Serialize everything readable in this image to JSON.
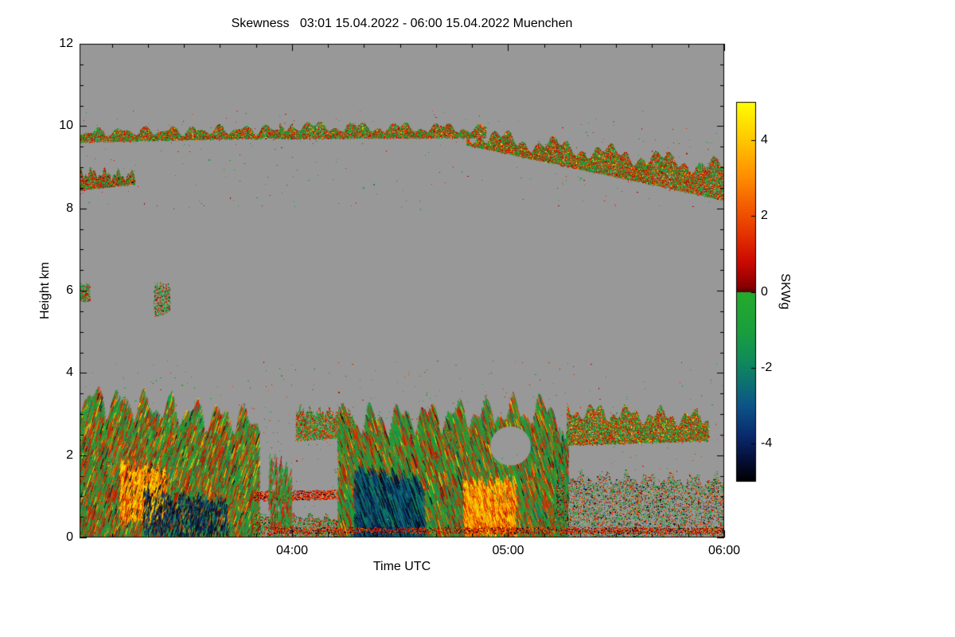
{
  "chart_data": {
    "type": "heatmap",
    "title": "Skewness   03:01 15.04.2022 - 06:00 15.04.2022 Muenchen",
    "xlabel": "Time UTC",
    "ylabel": "Height km",
    "site": "Muenchen",
    "time_start": "03:01 15.04.2022",
    "time_end": "06:00 15.04.2022",
    "x_range_minutes": [
      181,
      360
    ],
    "x_major_ticks": [
      {
        "label": "04:00",
        "minutes": 240
      },
      {
        "label": "05:00",
        "minutes": 300
      },
      {
        "label": "06:00",
        "minutes": 360
      }
    ],
    "x_minor_step_minutes": 10,
    "ylim": [
      0,
      12
    ],
    "y_major_ticks": [
      0,
      2,
      4,
      6,
      8,
      10,
      12
    ],
    "y_minor_step": 0.5,
    "no_data_color": "#989898",
    "frame_color": "#000000",
    "colorbar": {
      "label": "SKWg",
      "range": [
        -5,
        5
      ],
      "ticks": [
        4,
        2,
        0,
        -2,
        -4
      ]
    },
    "colormap_stops": [
      [
        -5.0,
        "#000000"
      ],
      [
        -4.4,
        "#06103a"
      ],
      [
        -3.8,
        "#0a2a6e"
      ],
      [
        -3.0,
        "#0c5488"
      ],
      [
        -2.4,
        "#0c7272"
      ],
      [
        -1.8,
        "#108c5a"
      ],
      [
        -1.0,
        "#1aa03c"
      ],
      [
        -0.02,
        "#25aa2e"
      ],
      [
        0.0,
        "#5c0000"
      ],
      [
        0.15,
        "#8c0000"
      ],
      [
        0.8,
        "#cd0a00"
      ],
      [
        1.5,
        "#e43200"
      ],
      [
        2.2,
        "#f25a00"
      ],
      [
        3.0,
        "#ff8c00"
      ],
      [
        4.0,
        "#ffc800"
      ],
      [
        5.0,
        "#ffff00"
      ]
    ],
    "value_classes": {
      "green": [
        -1.6,
        -0.15
      ],
      "teal": [
        -2.6,
        -1.7
      ],
      "blue": [
        -4.0,
        -2.7
      ],
      "black": [
        -5.0,
        -4.3
      ],
      "darkred": [
        0.05,
        0.4
      ],
      "red": [
        0.45,
        1.8
      ],
      "orange": [
        2.0,
        3.2
      ],
      "yellow": [
        3.6,
        5.0
      ]
    },
    "seed": 20220415,
    "regions": [
      {
        "name": "cirrus-left",
        "style": "speckle",
        "x": [
          0.0,
          0.33
        ],
        "y_bottom": [
          9.62,
          9.72
        ],
        "y_top": [
          10.0,
          10.08
        ],
        "rag": 0.28,
        "samples": 9000,
        "weights": {
          "green": 0.5,
          "red": 0.42,
          "orange": 0.06,
          "yellow": 0.02
        }
      },
      {
        "name": "cirrus-mid",
        "style": "speckle",
        "x": [
          0.31,
          0.63
        ],
        "y_bottom": [
          9.7,
          9.72
        ],
        "y_top": [
          10.15,
          10.1
        ],
        "rag": 0.3,
        "samples": 9000,
        "weights": {
          "green": 0.5,
          "red": 0.42,
          "orange": 0.06,
          "yellow": 0.02
        }
      },
      {
        "name": "cirrus-right",
        "style": "speckle",
        "x": [
          0.6,
          1.0
        ],
        "y_bottom": [
          9.55,
          8.2
        ],
        "y_top": [
          10.05,
          9.25
        ],
        "rag": 0.5,
        "samples": 24000,
        "weights": {
          "green": 0.48,
          "red": 0.44,
          "orange": 0.06,
          "yellow": 0.02
        }
      },
      {
        "name": "patch-9km-left",
        "style": "speckle",
        "x": [
          0.0,
          0.085
        ],
        "y_bottom": [
          8.45,
          8.6
        ],
        "y_top": [
          9.05,
          8.95
        ],
        "rag": 0.35,
        "samples": 3800,
        "weights": {
          "green": 0.45,
          "red": 0.45,
          "orange": 0.05,
          "black": 0.05
        }
      },
      {
        "name": "speck-6km-edge",
        "style": "speckle",
        "x": [
          0.0,
          0.015
        ],
        "y_bottom": [
          5.75,
          5.75
        ],
        "y_top": [
          6.2,
          6.2
        ],
        "rag": 0.1,
        "samples": 350,
        "weights": {
          "green": 0.6,
          "red": 0.4
        }
      },
      {
        "name": "speck-6km",
        "style": "speckle",
        "x": [
          0.115,
          0.14
        ],
        "y_bottom": [
          5.35,
          5.5
        ],
        "y_top": [
          6.25,
          6.2
        ],
        "rag": 0.2,
        "samples": 550,
        "weights": {
          "green": 0.55,
          "red": 0.4,
          "black": 0.05
        }
      },
      {
        "name": "lower-left-cloud",
        "style": "streak",
        "x": [
          0.0,
          0.28
        ],
        "y_bottom": [
          0,
          0
        ],
        "y_top": [
          3.9,
          3.3
        ],
        "rag": 0.9,
        "tilt": -0.3,
        "len": [
          5,
          16
        ],
        "samples": 14000,
        "weights": {
          "green": 0.52,
          "red": 0.3,
          "orange": 0.07,
          "yellow": 0.04,
          "teal": 0.04,
          "black": 0.03
        }
      },
      {
        "name": "left-hotspot",
        "style": "streak",
        "x": [
          0.065,
          0.135
        ],
        "y_bottom": [
          0.5,
          0.6
        ],
        "y_top": [
          2.0,
          1.8
        ],
        "rag": 0.3,
        "tilt": -0.25,
        "len": [
          4,
          12
        ],
        "samples": 2500,
        "weights": {
          "yellow": 0.42,
          "orange": 0.3,
          "red": 0.18,
          "black": 0.1
        }
      },
      {
        "name": "left-dark-streaks",
        "style": "streak",
        "x": [
          0.1,
          0.23
        ],
        "y_bottom": [
          0.1,
          0.1
        ],
        "y_top": [
          1.3,
          1.1
        ],
        "rag": 0.3,
        "tilt": -0.2,
        "len": [
          3,
          9
        ],
        "samples": 900,
        "weights": {
          "black": 0.55,
          "blue": 0.35,
          "teal": 0.1
        }
      },
      {
        "name": "gap-low-strip",
        "style": "speckle",
        "x": [
          0.27,
          0.42
        ],
        "y_bottom": [
          0,
          0
        ],
        "y_top": [
          0.7,
          0.55
        ],
        "rag": 0.2,
        "samples": 2600,
        "weights": {
          "green": 0.5,
          "red": 0.35,
          "black": 0.1,
          "orange": 0.05
        }
      },
      {
        "name": "gap-redline",
        "style": "speckle",
        "x": [
          0.27,
          0.47
        ],
        "y_bottom": [
          0.9,
          0.95
        ],
        "y_top": [
          1.15,
          1.2
        ],
        "rag": 0.05,
        "samples": 2200,
        "weights": {
          "red": 0.6,
          "black": 0.2,
          "orange": 0.2
        }
      },
      {
        "name": "gap-column",
        "style": "streak",
        "x": [
          0.295,
          0.33
        ],
        "y_bottom": [
          0.2,
          0.2
        ],
        "y_top": [
          2.2,
          1.8
        ],
        "rag": 0.4,
        "tilt": -0.15,
        "len": [
          4,
          10
        ],
        "samples": 600,
        "weights": {
          "green": 0.6,
          "red": 0.4
        }
      },
      {
        "name": "gap-patch-3km",
        "style": "speckle",
        "x": [
          0.335,
          0.425
        ],
        "y_bottom": [
          2.35,
          2.45
        ],
        "y_top": [
          3.25,
          3.15
        ],
        "rag": 0.3,
        "samples": 3200,
        "weights": {
          "green": 0.55,
          "red": 0.35,
          "orange": 0.1
        }
      },
      {
        "name": "mid-cloud",
        "style": "streak",
        "x": [
          0.4,
          0.735
        ],
        "y_bottom": [
          0,
          0
        ],
        "y_top": [
          3.3,
          3.6
        ],
        "rag": 0.9,
        "tilt": 0.3,
        "len": [
          6,
          20
        ],
        "samples": 21000,
        "weights": {
          "green": 0.54,
          "red": 0.28,
          "orange": 0.07,
          "yellow": 0.03,
          "teal": 0.04,
          "blue": 0.02,
          "black": 0.02
        }
      },
      {
        "name": "mid-dark-streaks",
        "style": "streak",
        "x": [
          0.425,
          0.53
        ],
        "y_bottom": [
          0,
          0
        ],
        "y_top": [
          1.9,
          1.6
        ],
        "rag": 0.3,
        "tilt": 0.35,
        "len": [
          8,
          22
        ],
        "samples": 1600,
        "weights": {
          "blue": 0.4,
          "black": 0.3,
          "teal": 0.3
        }
      },
      {
        "name": "mid-hotspot",
        "style": "streak",
        "x": [
          0.595,
          0.675
        ],
        "y_bottom": [
          0.15,
          0.2
        ],
        "y_top": [
          1.5,
          1.6
        ],
        "rag": 0.3,
        "tilt": 0.25,
        "len": [
          4,
          12
        ],
        "samples": 1800,
        "weights": {
          "yellow": 0.45,
          "orange": 0.3,
          "red": 0.25
        }
      },
      {
        "name": "mid-cloud-hole",
        "style": "hole",
        "x": [
          0.637,
          0.7
        ],
        "y_bottom": [
          1.75,
          1.75
        ],
        "y_top": [
          2.7,
          2.7
        ]
      },
      {
        "name": "right-column",
        "style": "streak",
        "x": [
          0.735,
          0.757
        ],
        "y_bottom": [
          0,
          0
        ],
        "y_top": [
          2.9,
          2.6
        ],
        "rag": 0.4,
        "tilt": 0.15,
        "len": [
          5,
          14
        ],
        "samples": 1000,
        "weights": {
          "green": 0.6,
          "red": 0.25,
          "teal": 0.1,
          "black": 0.05
        }
      },
      {
        "name": "right-band",
        "style": "speckle",
        "x": [
          0.755,
          0.975
        ],
        "y_bottom": [
          2.25,
          2.35
        ],
        "y_top": [
          3.35,
          3.15
        ],
        "rag": 0.5,
        "samples": 13000,
        "weights": {
          "green": 0.5,
          "red": 0.38,
          "orange": 0.08,
          "yellow": 0.04
        }
      },
      {
        "name": "right-low-scatter",
        "style": "speckle",
        "x": [
          0.74,
          1.0
        ],
        "y_bottom": [
          0,
          0
        ],
        "y_top": [
          1.7,
          1.6
        ],
        "rag": 0.4,
        "samples": 6500,
        "weights": {
          "green": 0.45,
          "red": 0.3,
          "black": 0.1,
          "blue": 0.05,
          "orange": 0.1
        }
      },
      {
        "name": "bottom-redline",
        "style": "speckle",
        "x": [
          0.3,
          1.0
        ],
        "y_bottom": [
          0.1,
          0.1
        ],
        "y_top": [
          0.25,
          0.25
        ],
        "rag": 0.0,
        "samples": 3000,
        "weights": {
          "red": 0.6,
          "orange": 0.15,
          "black": 0.25
        }
      },
      {
        "name": "sparse-dots-low",
        "style": "speckle",
        "x": [
          0.0,
          1.0
        ],
        "y_bottom": [
          0,
          0
        ],
        "y_top": [
          4.3,
          4.3
        ],
        "rag": 0.0,
        "samples": 600,
        "weights": {
          "green": 0.5,
          "red": 0.4,
          "orange": 0.1
        }
      },
      {
        "name": "sparse-dots-upper",
        "style": "speckle",
        "x": [
          0.0,
          1.0
        ],
        "y_bottom": [
          8.0,
          8.0
        ],
        "y_top": [
          10.4,
          10.4
        ],
        "rag": 0.0,
        "samples": 250,
        "weights": {
          "green": 0.5,
          "red": 0.5
        }
      }
    ]
  }
}
